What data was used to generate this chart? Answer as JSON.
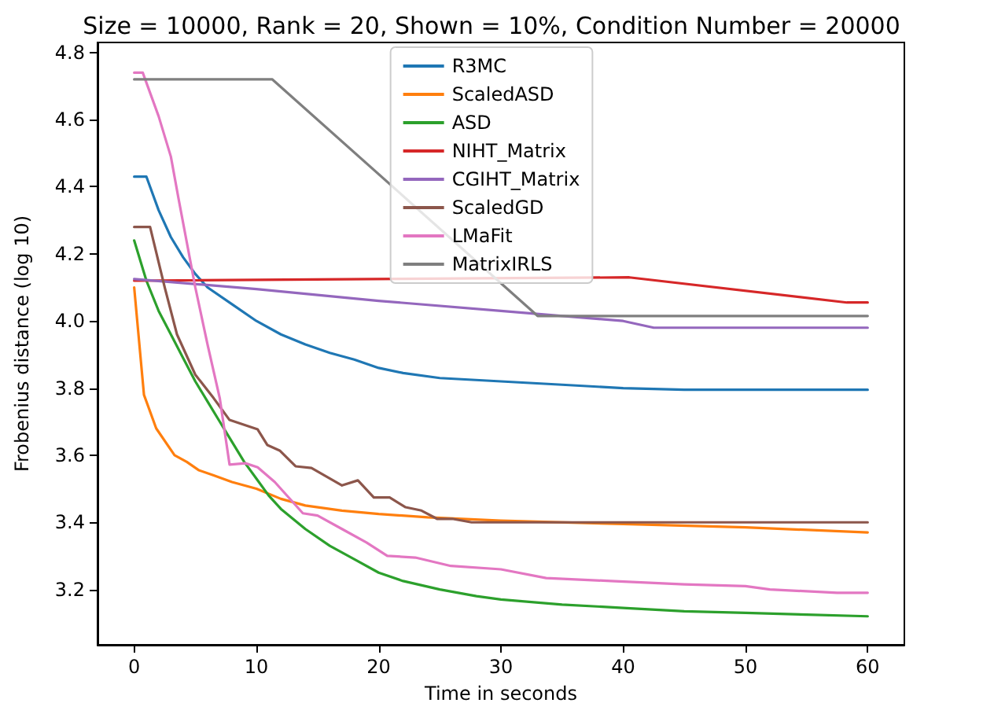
{
  "chart_data": {
    "type": "line",
    "title": "Size = 10000, Rank = 20, Shown = 10%, Condition Number = 20000",
    "xlabel": "Time in seconds",
    "ylabel": "Frobenius distance (log 10)",
    "xlim": [
      -3,
      63
    ],
    "xticks": [
      0,
      10,
      20,
      30,
      40,
      50,
      60
    ],
    "ylim": [
      3.035,
      4.83
    ],
    "yticks": [
      3.2,
      3.4,
      3.6,
      3.8,
      {
        "value": 4,
        "label": "4.0"
      },
      4.2,
      4.4,
      4.6,
      4.8
    ],
    "grid": false,
    "legend": "top",
    "marker": "none",
    "line_style": "solid",
    "series": [
      {
        "name": "R3MC",
        "color": "#1f77b4",
        "x": [
          0,
          1,
          2,
          3,
          4,
          5,
          6,
          8,
          10,
          12,
          14,
          16,
          18,
          20,
          22,
          25,
          30,
          35,
          40,
          45,
          50,
          55,
          60
        ],
        "values": [
          4.43,
          4.43,
          4.33,
          4.25,
          4.19,
          4.14,
          4.1,
          4.05,
          4.0,
          3.96,
          3.93,
          3.905,
          3.885,
          3.86,
          3.845,
          3.83,
          3.82,
          3.81,
          3.8,
          3.795,
          3.795,
          3.795,
          3.795
        ]
      },
      {
        "name": "ScaledASD",
        "color": "#ff7f0e",
        "x": [
          0,
          0.8,
          1.8,
          3.3,
          4.3,
          5.3,
          6.5,
          8,
          10,
          12,
          14,
          17,
          20,
          24,
          30,
          40,
          50,
          60
        ],
        "values": [
          4.1,
          3.78,
          3.68,
          3.6,
          3.58,
          3.555,
          3.54,
          3.52,
          3.5,
          3.47,
          3.45,
          3.435,
          3.425,
          3.415,
          3.405,
          3.395,
          3.385,
          3.37
        ]
      },
      {
        "name": "ASD",
        "color": "#2ca02c",
        "x": [
          0,
          1,
          2,
          3,
          4,
          5,
          6,
          7,
          8,
          9,
          10,
          11,
          12,
          14,
          16,
          18,
          20,
          22,
          25,
          28,
          30,
          35,
          40,
          45,
          50,
          55,
          60
        ],
        "values": [
          4.24,
          4.12,
          4.03,
          3.96,
          3.89,
          3.82,
          3.76,
          3.7,
          3.64,
          3.58,
          3.53,
          3.48,
          3.44,
          3.38,
          3.33,
          3.29,
          3.25,
          3.225,
          3.2,
          3.18,
          3.17,
          3.155,
          3.145,
          3.135,
          3.13,
          3.125,
          3.12
        ]
      },
      {
        "name": "NIHT_Matrix",
        "color": "#d62728",
        "x": [
          0,
          40.5,
          58.3,
          60
        ],
        "values": [
          4.12,
          4.13,
          4.055,
          4.055
        ]
      },
      {
        "name": "CGIHT_Matrix",
        "color": "#9467bd",
        "x": [
          0,
          10,
          20,
          30,
          40,
          42.5,
          60
        ],
        "values": [
          4.125,
          4.095,
          4.06,
          4.03,
          4.0,
          3.98,
          3.98
        ]
      },
      {
        "name": "ScaledGD",
        "color": "#8c564b",
        "x": [
          0,
          1.3,
          2.5,
          3.5,
          5,
          6.5,
          7.8,
          10.1,
          10.9,
          11.9,
          13.2,
          14.5,
          17,
          18.3,
          19.6,
          20.9,
          22.2,
          23.5,
          24.8,
          26.1,
          27.6,
          60
        ],
        "values": [
          4.28,
          4.28,
          4.1,
          3.96,
          3.84,
          3.77,
          3.705,
          3.677,
          3.63,
          3.614,
          3.567,
          3.562,
          3.51,
          3.525,
          3.474,
          3.474,
          3.445,
          3.435,
          3.41,
          3.41,
          3.4,
          3.4
        ]
      },
      {
        "name": "LMaFit",
        "color": "#e377c2",
        "x": [
          0,
          0.7,
          2,
          3,
          3.6,
          5,
          6,
          7,
          7.8,
          9.1,
          10.1,
          11.5,
          13.8,
          15,
          17,
          19,
          20.7,
          23,
          25.9,
          30,
          33.7,
          39,
          45,
          50,
          52,
          57.5,
          60
        ],
        "values": [
          4.74,
          4.74,
          4.61,
          4.49,
          4.37,
          4.1,
          3.93,
          3.77,
          3.572,
          3.576,
          3.564,
          3.52,
          3.427,
          3.42,
          3.38,
          3.34,
          3.3,
          3.295,
          3.27,
          3.26,
          3.234,
          3.225,
          3.215,
          3.21,
          3.2,
          3.19,
          3.19
        ]
      },
      {
        "name": "MatrixIRLS",
        "color": "#7f7f7f",
        "x": [
          0,
          11.3,
          33,
          60
        ],
        "values": [
          4.72,
          4.72,
          4.015,
          4.015
        ]
      }
    ]
  }
}
